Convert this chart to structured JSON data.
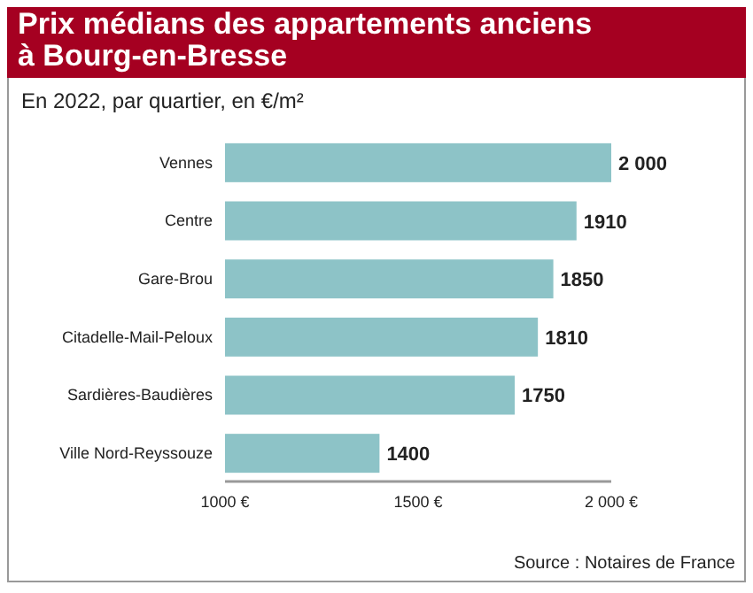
{
  "chart_data": {
    "type": "bar",
    "orientation": "horizontal",
    "title": "Prix médians des appartements anciens à Bourg-en-Bresse",
    "subtitle": "En 2022, par quartier, en €/m²",
    "categories": [
      "Vennes",
      "Centre",
      "Gare-Brou",
      "Citadelle-Mail-Peloux",
      "Sardières-Baudières",
      "Ville Nord-Reyssouze"
    ],
    "values": [
      2000,
      1910,
      1850,
      1810,
      1750,
      1400
    ],
    "value_labels": [
      "2 000",
      "1910",
      "1850",
      "1810",
      "1750",
      "1400"
    ],
    "color": "#8dc3c7",
    "xlim": [
      1000,
      2000
    ],
    "xticks": [
      {
        "value": 1000,
        "label": "1000 €"
      },
      {
        "value": 1500,
        "label": "1500 €"
      },
      {
        "value": 2000,
        "label": "2 000 €"
      }
    ],
    "grid": false,
    "annotations": [
      "Source : Notaires de France"
    ]
  }
}
